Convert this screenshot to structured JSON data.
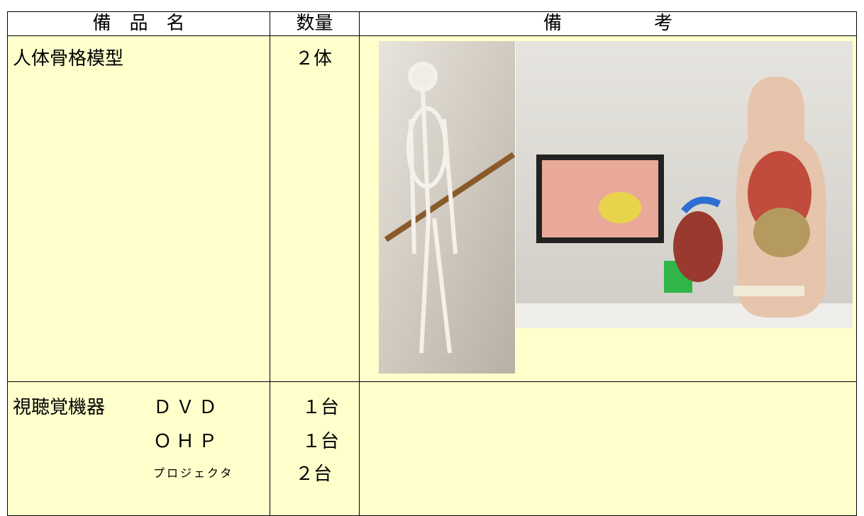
{
  "table": {
    "header": [
      "備　品　名",
      "数量",
      "備　　　　　考"
    ],
    "rows": [
      {
        "name": "人体骨格模型",
        "items": [
          {
            "name": "",
            "quantity": "２体"
          }
        ]
      },
      {
        "name": "視聴覚機器",
        "items": [
          {
            "name": "ＤＶＤ",
            "quantity": "１台"
          },
          {
            "name": "ＯＨＰ",
            "quantity": "１台"
          },
          {
            "name": "プロジェクタ",
            "quantity": "２台"
          }
        ]
      }
    ]
  }
}
